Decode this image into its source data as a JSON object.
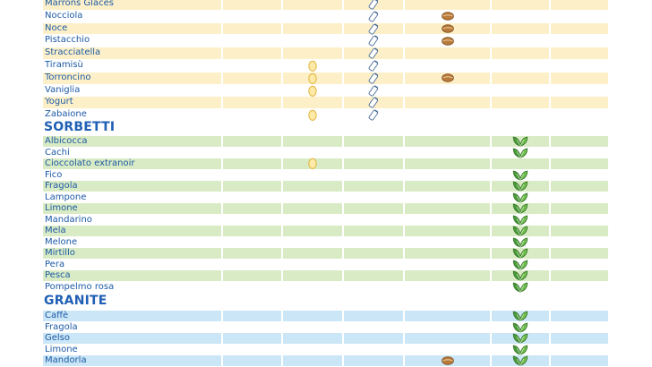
{
  "colors": {
    "cream_band": "#fdf0c8",
    "green_band": "#d9ebc4",
    "blue_band": "#cbe6f6",
    "text_blue": "#1c5aa6",
    "heading_blue": "#1f5fb4"
  },
  "icons": {
    "egg": "egg-icon",
    "milk": "milk-bottle-icon",
    "nut": "hazelnut-icon",
    "vegan": "leaf-icon"
  },
  "creme_rows": [
    {
      "name": "Marrons Glacés",
      "band": true,
      "egg": false,
      "milk": true,
      "nut": false,
      "vegan": false
    },
    {
      "name": "Nocciola",
      "band": false,
      "egg": false,
      "milk": true,
      "nut": true,
      "vegan": false
    },
    {
      "name": "Noce",
      "band": true,
      "egg": false,
      "milk": true,
      "nut": true,
      "vegan": false
    },
    {
      "name": "Pistacchio",
      "band": false,
      "egg": false,
      "milk": true,
      "nut": true,
      "vegan": false
    },
    {
      "name": "Stracciatella",
      "band": true,
      "egg": false,
      "milk": true,
      "nut": false,
      "vegan": false
    },
    {
      "name": "Tiramisù",
      "band": false,
      "egg": true,
      "milk": true,
      "nut": false,
      "vegan": false
    },
    {
      "name": "Torroncino",
      "band": true,
      "egg": true,
      "milk": true,
      "nut": true,
      "vegan": false
    },
    {
      "name": "Vaniglia",
      "band": false,
      "egg": true,
      "milk": true,
      "nut": false,
      "vegan": false
    },
    {
      "name": "Yogurt",
      "band": true,
      "egg": false,
      "milk": true,
      "nut": false,
      "vegan": false
    },
    {
      "name": "Zabaione",
      "band": false,
      "egg": true,
      "milk": true,
      "nut": false,
      "vegan": false
    }
  ],
  "sorbetti": {
    "title": "SORBETTI",
    "rows": [
      {
        "name": "Albicocca",
        "band": true,
        "egg": false,
        "milk": false,
        "nut": false,
        "vegan": true
      },
      {
        "name": "Cachi",
        "band": false,
        "egg": false,
        "milk": false,
        "nut": false,
        "vegan": true
      },
      {
        "name": "Cioccolato extranoir",
        "band": true,
        "egg": true,
        "milk": false,
        "nut": false,
        "vegan": false
      },
      {
        "name": "Fico",
        "band": false,
        "egg": false,
        "milk": false,
        "nut": false,
        "vegan": true
      },
      {
        "name": "Fragola",
        "band": true,
        "egg": false,
        "milk": false,
        "nut": false,
        "vegan": true
      },
      {
        "name": "Lampone",
        "band": false,
        "egg": false,
        "milk": false,
        "nut": false,
        "vegan": true
      },
      {
        "name": "Limone",
        "band": true,
        "egg": false,
        "milk": false,
        "nut": false,
        "vegan": true
      },
      {
        "name": "Mandarino",
        "band": false,
        "egg": false,
        "milk": false,
        "nut": false,
        "vegan": true
      },
      {
        "name": "Mela",
        "band": true,
        "egg": false,
        "milk": false,
        "nut": false,
        "vegan": true
      },
      {
        "name": "Melone",
        "band": false,
        "egg": false,
        "milk": false,
        "nut": false,
        "vegan": true
      },
      {
        "name": "Mirtillo",
        "band": true,
        "egg": false,
        "milk": false,
        "nut": false,
        "vegan": true
      },
      {
        "name": "Pera",
        "band": false,
        "egg": false,
        "milk": false,
        "nut": false,
        "vegan": true
      },
      {
        "name": "Pesca",
        "band": true,
        "egg": false,
        "milk": false,
        "nut": false,
        "vegan": true
      },
      {
        "name": "Pompelmo rosa",
        "band": false,
        "egg": false,
        "milk": false,
        "nut": false,
        "vegan": true
      }
    ]
  },
  "granite": {
    "title": "GRANITE",
    "rows": [
      {
        "name": "Caffè",
        "band": true,
        "egg": false,
        "milk": false,
        "nut": false,
        "vegan": true
      },
      {
        "name": "Fragola",
        "band": false,
        "egg": false,
        "milk": false,
        "nut": false,
        "vegan": true
      },
      {
        "name": "Gelso",
        "band": true,
        "egg": false,
        "milk": false,
        "nut": false,
        "vegan": true
      },
      {
        "name": "Limone",
        "band": false,
        "egg": false,
        "milk": false,
        "nut": false,
        "vegan": true
      },
      {
        "name": "Mandorla",
        "band": true,
        "egg": false,
        "milk": false,
        "nut": true,
        "vegan": true
      }
    ]
  }
}
